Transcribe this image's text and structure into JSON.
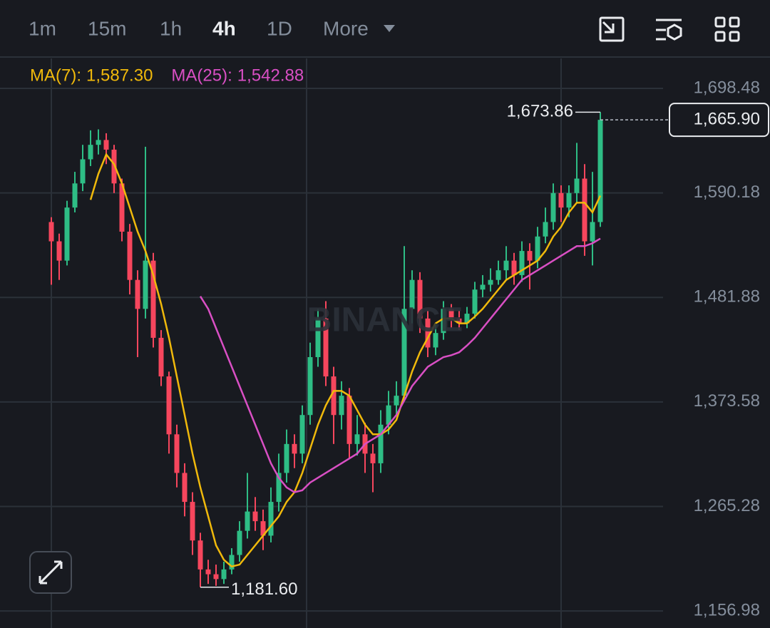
{
  "toolbar": {
    "intervals": [
      "1m",
      "15m",
      "1h",
      "4h",
      "1D",
      "More"
    ],
    "active": 3
  },
  "chart_data": {
    "type": "candlestick",
    "watermark": "BINANCE",
    "open": [
      1560,
      1540,
      1520,
      1575,
      1600,
      1625,
      1640,
      1645,
      1635,
      1600,
      1550,
      1500,
      1470,
      1520,
      1440,
      1400,
      1340,
      1300,
      1270,
      1230,
      1200,
      1195,
      1190,
      1200,
      1215,
      1240,
      1260,
      1250,
      1235,
      1270,
      1300,
      1330,
      1320,
      1360,
      1420,
      1460,
      1400,
      1360,
      1380,
      1330,
      1340,
      1320,
      1310,
      1350,
      1370,
      1380,
      1470,
      1500,
      1460,
      1430,
      1445,
      1470,
      1460,
      1455,
      1465,
      1490,
      1495,
      1500,
      1510,
      1520,
      1505,
      1530,
      1520,
      1545,
      1560,
      1590,
      1575,
      1590,
      1605,
      1540,
      1560
    ],
    "high": [
      1565,
      1548,
      1582,
      1612,
      1640,
      1655,
      1656,
      1652,
      1640,
      1605,
      1558,
      1510,
      1638,
      1528,
      1448,
      1405,
      1350,
      1310,
      1280,
      1238,
      1210,
      1205,
      1208,
      1222,
      1250,
      1300,
      1275,
      1262,
      1285,
      1320,
      1345,
      1340,
      1370,
      1435,
      1470,
      1478,
      1410,
      1395,
      1388,
      1360,
      1352,
      1330,
      1365,
      1385,
      1395,
      1535,
      1510,
      1508,
      1468,
      1455,
      1478,
      1475,
      1468,
      1472,
      1498,
      1505,
      1512,
      1520,
      1535,
      1528,
      1540,
      1538,
      1555,
      1575,
      1600,
      1598,
      1598,
      1642,
      1620,
      1612,
      1673.86
    ],
    "low": [
      1495,
      1500,
      1515,
      1570,
      1592,
      1618,
      1630,
      1620,
      1590,
      1540,
      1485,
      1420,
      1460,
      1430,
      1390,
      1320,
      1285,
      1255,
      1215,
      1181.6,
      1185,
      1183,
      1185,
      1195,
      1208,
      1232,
      1240,
      1220,
      1228,
      1260,
      1290,
      1305,
      1310,
      1350,
      1410,
      1390,
      1330,
      1345,
      1315,
      1318,
      1300,
      1280,
      1300,
      1340,
      1360,
      1375,
      1455,
      1445,
      1420,
      1422,
      1438,
      1450,
      1448,
      1450,
      1460,
      1482,
      1488,
      1495,
      1500,
      1495,
      1498,
      1490,
      1512,
      1538,
      1552,
      1560,
      1565,
      1580,
      1525,
      1515,
      1555
    ],
    "close": [
      1540,
      1520,
      1575,
      1600,
      1625,
      1640,
      1645,
      1635,
      1600,
      1550,
      1500,
      1470,
      1520,
      1440,
      1400,
      1340,
      1300,
      1270,
      1230,
      1200,
      1195,
      1190,
      1200,
      1215,
      1240,
      1260,
      1250,
      1235,
      1270,
      1300,
      1330,
      1320,
      1360,
      1420,
      1460,
      1400,
      1360,
      1380,
      1330,
      1340,
      1320,
      1310,
      1350,
      1370,
      1380,
      1470,
      1500,
      1460,
      1430,
      1445,
      1470,
      1460,
      1455,
      1465,
      1490,
      1495,
      1500,
      1510,
      1520,
      1505,
      1530,
      1520,
      1545,
      1560,
      1590,
      1575,
      1590,
      1605,
      1540,
      1560,
      1665.9
    ],
    "up_color": "#2ebd85",
    "down_color": "#f6465d",
    "series": [
      {
        "name": "MA(7):",
        "value_label": "1,587.30",
        "color": "#f0b90b",
        "values": [
          null,
          null,
          null,
          null,
          null,
          1583,
          1610,
          1630,
          1620,
          1600,
          1575,
          1550,
          1530,
          1505,
          1475,
          1440,
          1400,
          1360,
          1320,
          1285,
          1255,
          1225,
          1210,
          1203,
          1205,
          1215,
          1225,
          1235,
          1245,
          1255,
          1270,
          1280,
          1300,
          1325,
          1350,
          1370,
          1385,
          1385,
          1380,
          1365,
          1350,
          1340,
          1340,
          1345,
          1355,
          1380,
          1405,
          1425,
          1440,
          1455,
          1460,
          1460,
          1455,
          1455,
          1462,
          1470,
          1480,
          1490,
          1500,
          1505,
          1510,
          1515,
          1520,
          1530,
          1545,
          1555,
          1570,
          1580,
          1580,
          1570,
          1587.3
        ]
      },
      {
        "name": "MA(25):",
        "value_label": "1,542.88",
        "color": "#d94fc4",
        "values": [
          null,
          null,
          null,
          null,
          null,
          null,
          null,
          null,
          null,
          null,
          null,
          null,
          null,
          null,
          null,
          null,
          null,
          null,
          null,
          1483,
          1470,
          1450,
          1430,
          1410,
          1390,
          1370,
          1350,
          1330,
          1310,
          1295,
          1285,
          1280,
          1282,
          1290,
          1295,
          1300,
          1305,
          1310,
          1315,
          1320,
          1330,
          1335,
          1340,
          1350,
          1360,
          1375,
          1390,
          1400,
          1410,
          1415,
          1420,
          1422,
          1425,
          1432,
          1440,
          1450,
          1460,
          1470,
          1480,
          1490,
          1500,
          1505,
          1510,
          1515,
          1520,
          1525,
          1530,
          1535,
          1535,
          1538,
          1542.88
        ]
      }
    ],
    "ylim": [
      1139.3,
      1729.5
    ],
    "yticks": [
      {
        "value": 1156.98,
        "label": "1,156.98"
      },
      {
        "value": 1265.28,
        "label": "1,265.28"
      },
      {
        "value": 1373.58,
        "label": "1,373.58"
      },
      {
        "value": 1481.88,
        "label": "1,481.88"
      },
      {
        "value": 1590.18,
        "label": "1,590.18"
      },
      {
        "value": 1698.48,
        "label": "1,698.48"
      }
    ],
    "grid": true,
    "high_marker": {
      "value": 1673.86,
      "label": "1,673.86"
    },
    "low_marker": {
      "value": 1181.6,
      "label": "1,181.60"
    },
    "last_price": {
      "value": 1665.9,
      "label": "1,665.90"
    }
  }
}
